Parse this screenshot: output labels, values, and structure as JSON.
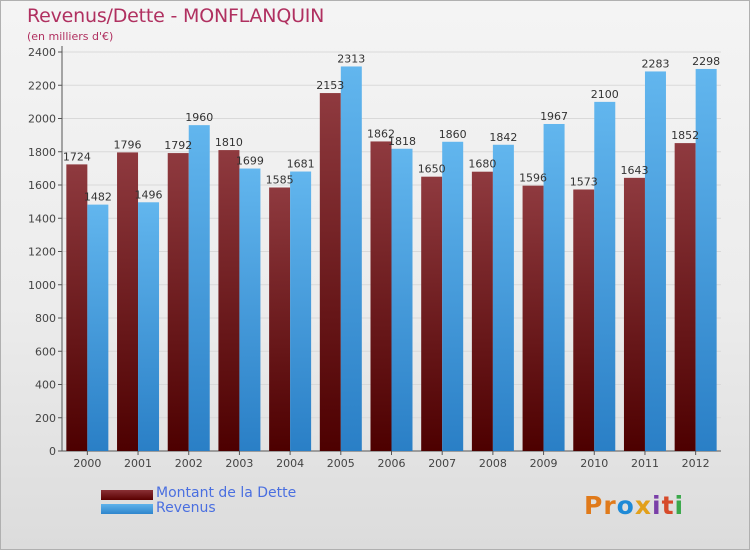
{
  "chart_data": {
    "type": "bar",
    "title": "Revenus/Dette - MONFLANQUIN",
    "subtitle": "(en milliers d'€)",
    "categories": [
      "2000",
      "2001",
      "2002",
      "2003",
      "2004",
      "2005",
      "2006",
      "2007",
      "2008",
      "2009",
      "2010",
      "2011",
      "2012"
    ],
    "series": [
      {
        "name": "Montant de la Dette",
        "color": "#6b0a0d",
        "values": [
          1724,
          1796,
          1792,
          1810,
          1585,
          2153,
          1862,
          1650,
          1680,
          1596,
          1573,
          1643,
          1852
        ]
      },
      {
        "name": "Revenus",
        "color": "#3d9be0",
        "values": [
          1482,
          1496,
          1960,
          1699,
          1681,
          2313,
          1818,
          1860,
          1842,
          1967,
          2100,
          2283,
          2298
        ]
      }
    ],
    "yticks": [
      0,
      200,
      400,
      600,
      800,
      1000,
      1200,
      1400,
      1600,
      1800,
      2000,
      2200,
      2400
    ],
    "ylim": [
      0,
      2400
    ],
    "grid": true,
    "legend_position": "bottom-left"
  },
  "legend": {
    "debt_label": "Montant de la Dette",
    "revenue_label": "Revenus"
  },
  "brand": {
    "p": "Pr",
    "o": "o",
    "x": "x",
    "i": "i",
    "t": "t",
    "i2": "i"
  }
}
